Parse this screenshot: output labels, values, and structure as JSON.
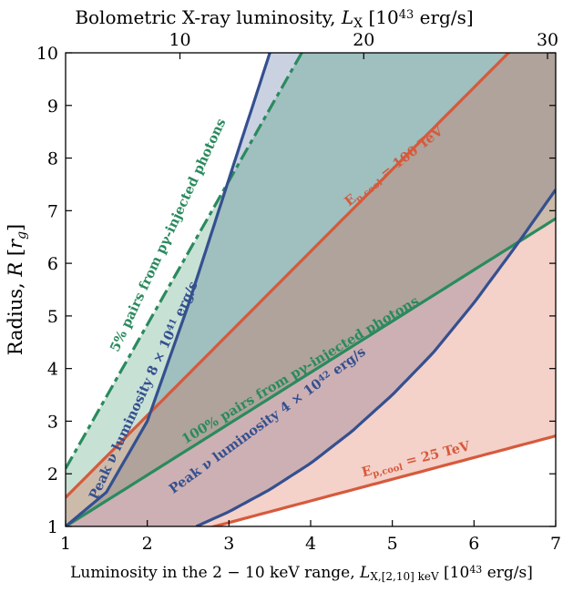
{
  "chart_data": {
    "type": "line",
    "xlabel": "Luminosity in the 2 − 10 keV range, L_X,[2,10] keV [10^43 erg/s]",
    "ylabel": "Radius, R [r_g]",
    "top_xlabel": "Bolometric X-ray luminosity, L_X [10^43 erg/s]",
    "xlim": [
      1,
      7
    ],
    "ylim": [
      1,
      10
    ],
    "x_ticks": [
      "1",
      "2",
      "3",
      "4",
      "5",
      "6",
      "7"
    ],
    "y_ticks": [
      "1",
      "2",
      "3",
      "4",
      "5",
      "6",
      "7",
      "8",
      "9",
      "10"
    ],
    "top_ticks": [
      {
        "label": "10",
        "at_x": 2.4
      },
      {
        "label": "20",
        "at_x": 4.65
      },
      {
        "label": "30",
        "at_x": 6.9
      }
    ],
    "grid": false,
    "series": [
      {
        "id": "pairs5",
        "color": "#2a8a5e",
        "dash": true,
        "x": [
          1,
          7
        ],
        "y": [
          2.1,
          18.5
        ]
      },
      {
        "id": "ecool100",
        "color": "#d65a3c",
        "x": [
          1,
          7
        ],
        "y": [
          1.55,
          10.9
        ]
      },
      {
        "id": "pairs100",
        "color": "#2a8a5e",
        "x": [
          1,
          7
        ],
        "y": [
          1.0,
          6.85
        ]
      },
      {
        "id": "ecool25",
        "color": "#d65a3c",
        "x": [
          1,
          7
        ],
        "y": [
          0.25,
          2.72
        ]
      },
      {
        "id": "nu_high",
        "color": "#34508f",
        "x": [
          1,
          1.5,
          2,
          2.5,
          3,
          3.5
        ],
        "y": [
          1.0,
          1.65,
          3.0,
          5.2,
          7.6,
          10.0
        ]
      },
      {
        "id": "nu_low",
        "color": "#34508f",
        "x": [
          2.6,
          3,
          3.5,
          4,
          4.5,
          5,
          5.5,
          6,
          6.5,
          7
        ],
        "y": [
          1.0,
          1.28,
          1.7,
          2.2,
          2.8,
          3.5,
          4.3,
          5.25,
          6.3,
          7.4
        ]
      }
    ],
    "annotations": [
      {
        "id": "ecool100",
        "text": "E_p,cool = 100 TeV",
        "color": "#d65a3c",
        "x": 5.05,
        "y": 7.78,
        "angle": -38
      },
      {
        "id": "ecool25",
        "text": "E_p,cool = 25 TeV",
        "color": "#d65a3c",
        "x": 5.3,
        "y": 2.2,
        "angle": -14
      },
      {
        "id": "pairs100",
        "text": "100% pairs from pγ-injected photons",
        "color": "#2a8a5e",
        "x": 3.9,
        "y": 3.9,
        "angle": -31
      },
      {
        "id": "pairs5",
        "text": "5% pairs from pγ-injected photons",
        "color": "#2a8a5e",
        "x": 2.3,
        "y": 6.5,
        "angle": -65
      },
      {
        "id": "nu_high",
        "text": "Peak ν luminosity 8 × 10^41 erg/s",
        "color": "#34508f",
        "x": 2.0,
        "y": 3.55,
        "angle": -65
      },
      {
        "id": "nu_low",
        "text": "Peak ν luminosity 4 × 10^42 erg/s",
        "color": "#34508f",
        "x": 3.5,
        "y": 2.95,
        "angle": -36
      }
    ]
  }
}
